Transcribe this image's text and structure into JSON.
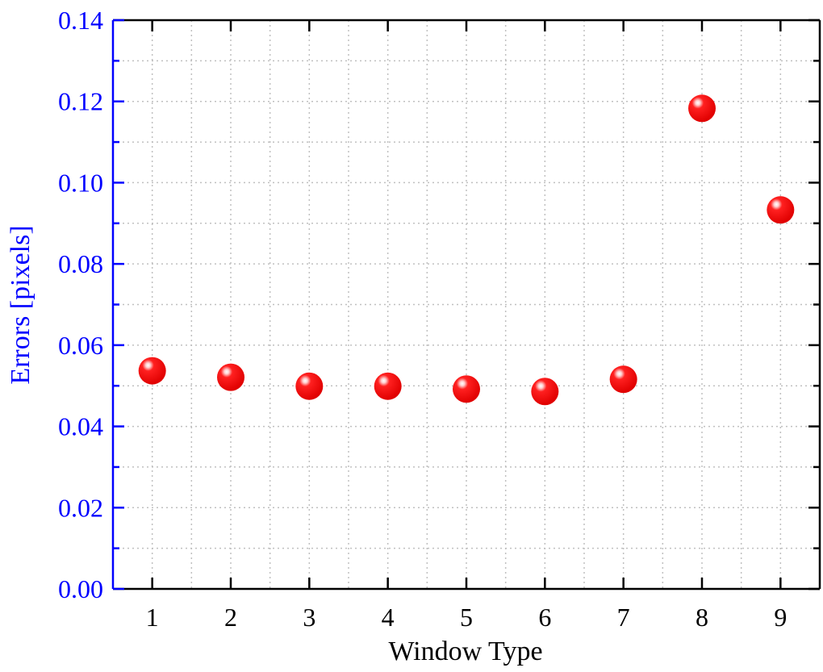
{
  "chart_data": {
    "type": "scatter",
    "title": "",
    "xlabel": "Window Type",
    "ylabel": "Errors [pixels]",
    "xlim": [
      0.5,
      9.5
    ],
    "ylim": [
      0,
      0.14
    ],
    "x_ticks": [
      "1",
      "2",
      "3",
      "4",
      "5",
      "6",
      "7",
      "8",
      "9"
    ],
    "y_ticks": [
      "0.00",
      "0.02",
      "0.04",
      "0.06",
      "0.08",
      "0.10",
      "0.12",
      "0.14"
    ],
    "grid": true,
    "x": [
      1,
      2,
      3,
      4,
      5,
      6,
      7,
      8,
      9
    ],
    "y": [
      0.0537,
      0.0521,
      0.0499,
      0.0499,
      0.0492,
      0.0486,
      0.0516,
      0.1183,
      0.0933
    ],
    "marker": "sphere",
    "colors": {
      "marker": "#ff0000",
      "y_axis": "#0000ff",
      "x_axis": "#000000",
      "grid": "#c0c0c0"
    }
  }
}
